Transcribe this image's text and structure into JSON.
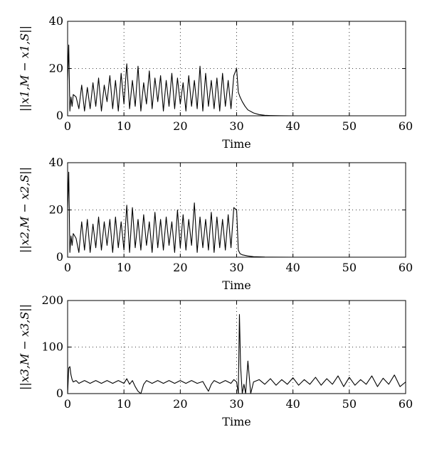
{
  "chart_data": [
    {
      "type": "line",
      "ylabel": "||x1,M − x1,S||",
      "xlabel": "Time",
      "xlim": [
        0,
        60
      ],
      "ylim": [
        0,
        40
      ],
      "xticks": [
        0,
        10,
        20,
        30,
        40,
        50,
        60
      ],
      "yticks": [
        0,
        20,
        40
      ],
      "grid": true,
      "series": [
        {
          "values_x": [
            0,
            0.2,
            0.4,
            0.6,
            0.8,
            1.0,
            1.5,
            2.0,
            2.5,
            3,
            3.5,
            4,
            4.5,
            5,
            5.5,
            6,
            6.5,
            7,
            7.5,
            8,
            8.5,
            9,
            9.5,
            10,
            10.5,
            11,
            11.5,
            12,
            12.5,
            13,
            13.5,
            14,
            14.5,
            15,
            15.5,
            16,
            16.5,
            17,
            17.5,
            18,
            18.5,
            19,
            19.5,
            20,
            20.5,
            21,
            21.5,
            22,
            22.5,
            23,
            23.5,
            24,
            24.5,
            25,
            25.5,
            26,
            26.5,
            27,
            27.5,
            28,
            28.5,
            29,
            29.5,
            30,
            30.3,
            30.6,
            31,
            31.5,
            32,
            33,
            34,
            35,
            36,
            38,
            40,
            50,
            60
          ],
          "values_y": [
            15,
            30,
            2,
            8,
            4,
            9,
            8,
            3,
            13,
            2,
            12,
            3,
            14,
            4,
            16,
            2,
            13,
            6,
            17,
            3,
            15,
            2,
            18,
            5,
            22,
            3,
            15,
            4,
            21,
            2,
            14,
            5,
            19,
            3,
            16,
            6,
            17,
            2,
            15,
            4,
            18,
            3,
            16,
            5,
            14,
            2,
            17,
            4,
            15,
            3,
            21,
            2,
            18,
            4,
            15,
            3,
            16,
            2,
            18,
            4,
            15,
            3,
            17,
            20,
            10,
            8,
            6,
            4,
            2.5,
            1.2,
            0.5,
            0.2,
            0.1,
            0.02,
            0,
            0,
            0
          ]
        }
      ]
    },
    {
      "type": "line",
      "ylabel": "||x2,M − x2,S||",
      "xlabel": "Time",
      "xlim": [
        0,
        60
      ],
      "ylim": [
        0,
        40
      ],
      "xticks": [
        0,
        10,
        20,
        30,
        40,
        50,
        60
      ],
      "yticks": [
        0,
        20,
        40
      ],
      "grid": true,
      "series": [
        {
          "values_x": [
            0,
            0.2,
            0.4,
            0.6,
            0.8,
            1.0,
            1.5,
            2.0,
            2.5,
            3,
            3.5,
            4,
            4.5,
            5,
            5.5,
            6,
            6.5,
            7,
            7.5,
            8,
            8.5,
            9,
            9.5,
            10,
            10.5,
            11,
            11.5,
            12,
            12.5,
            13,
            13.5,
            14,
            14.5,
            15,
            15.5,
            16,
            16.5,
            17,
            17.5,
            18,
            18.5,
            19,
            19.5,
            20,
            20.5,
            21,
            21.5,
            22,
            22.5,
            23,
            23.5,
            24,
            24.5,
            25,
            25.5,
            26,
            26.5,
            27,
            27.5,
            28,
            28.5,
            29,
            29.5,
            30,
            30.3,
            30.6,
            31,
            32,
            33,
            35,
            40,
            50,
            60
          ],
          "values_y": [
            20,
            36,
            2,
            9,
            5,
            10,
            8,
            2,
            15,
            3,
            16,
            2,
            14,
            4,
            17,
            3,
            15,
            5,
            16,
            2,
            17,
            4,
            15,
            3,
            22,
            2,
            21,
            4,
            16,
            3,
            18,
            5,
            15,
            2,
            19,
            4,
            16,
            3,
            17,
            5,
            15,
            2,
            20,
            4,
            18,
            3,
            16,
            5,
            23,
            2,
            17,
            4,
            16,
            3,
            19,
            2,
            17,
            4,
            16,
            3,
            18,
            4,
            21,
            20,
            3,
            1.5,
            1,
            0.5,
            0.2,
            0.05,
            0,
            0,
            0
          ]
        }
      ]
    },
    {
      "type": "line",
      "ylabel": "||x3,M − x3,S||",
      "xlabel": "Time",
      "xlim": [
        0,
        60
      ],
      "ylim": [
        0,
        200
      ],
      "xticks": [
        0,
        10,
        20,
        30,
        40,
        50,
        60
      ],
      "yticks": [
        0,
        100,
        200
      ],
      "grid": true,
      "series": [
        {
          "values_x": [
            0,
            0.2,
            0.4,
            0.6,
            0.8,
            1.0,
            1.5,
            2,
            3,
            4,
            5,
            6,
            7,
            8,
            9,
            10,
            10.5,
            11,
            11.5,
            12,
            12.5,
            13,
            13.5,
            14,
            15,
            16,
            17,
            18,
            19,
            20,
            21,
            22,
            23,
            24,
            24.5,
            25,
            25.5,
            26,
            27,
            28,
            29,
            29.5,
            30,
            30.3,
            30.5,
            30.7,
            31,
            31.3,
            31.6,
            32,
            32.5,
            33,
            34,
            35,
            36,
            37,
            38,
            39,
            40,
            41,
            42,
            43,
            44,
            45,
            46,
            47,
            48,
            49,
            50,
            51,
            52,
            53,
            54,
            55,
            56,
            57,
            58,
            59,
            60
          ],
          "values_y": [
            0,
            55,
            58,
            40,
            30,
            25,
            28,
            22,
            28,
            22,
            28,
            22,
            28,
            22,
            28,
            22,
            32,
            20,
            28,
            15,
            5,
            0,
            20,
            28,
            22,
            28,
            22,
            28,
            22,
            28,
            22,
            28,
            22,
            26,
            15,
            5,
            20,
            28,
            22,
            28,
            22,
            30,
            25,
            0,
            170,
            60,
            0,
            20,
            0,
            70,
            0,
            25,
            30,
            20,
            32,
            18,
            30,
            20,
            34,
            18,
            30,
            20,
            35,
            18,
            32,
            20,
            38,
            15,
            35,
            18,
            30,
            20,
            38,
            15,
            33,
            20,
            40,
            15,
            25
          ]
        }
      ]
    }
  ]
}
